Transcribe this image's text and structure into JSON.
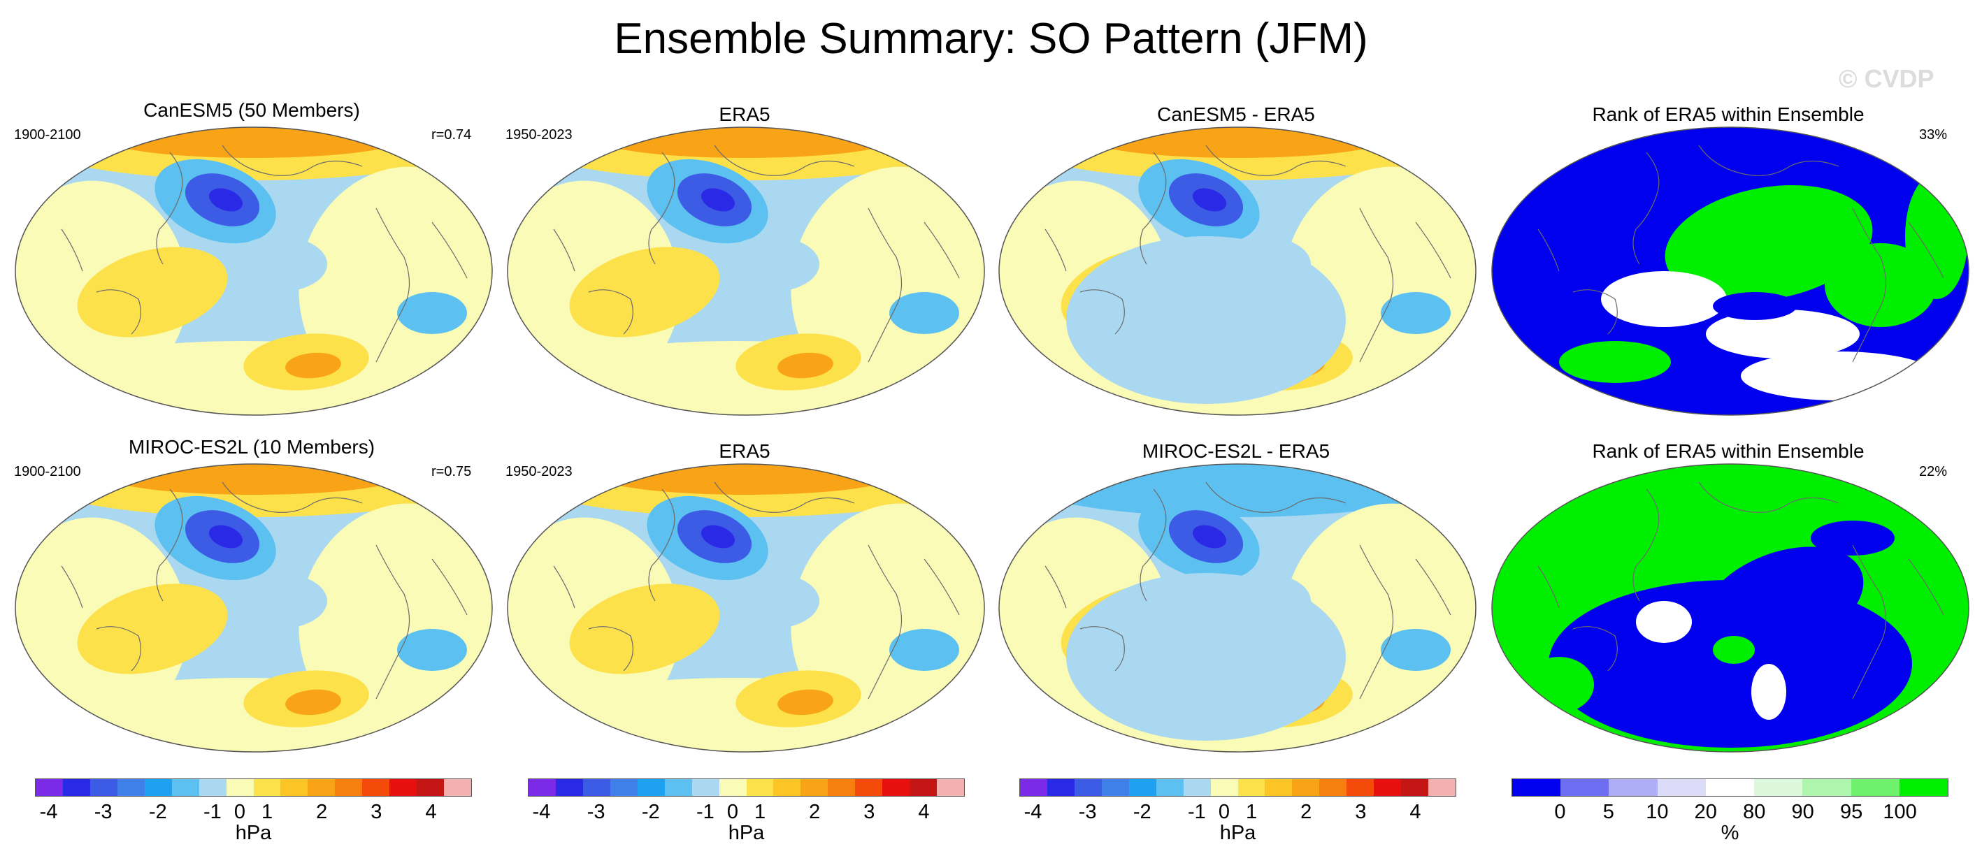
{
  "title": "Ensemble Summary: SO Pattern (JFM)",
  "watermark": "© CVDP",
  "rows": [
    {
      "panels": [
        {
          "title": "CanESM5 (50 Members)",
          "left_label": "1900-2100",
          "right_label": "r=0.74"
        },
        {
          "title": "ERA5",
          "left_label": "1950-2023",
          "right_label": ""
        },
        {
          "title": "CanESM5 - ERA5",
          "left_label": "",
          "right_label": ""
        },
        {
          "title": "Rank of ERA5 within Ensemble",
          "left_label": "",
          "right_label": "33%"
        }
      ]
    },
    {
      "panels": [
        {
          "title": "MIROC-ES2L (10 Members)",
          "left_label": "1900-2100",
          "right_label": "r=0.75"
        },
        {
          "title": "ERA5",
          "left_label": "1950-2023",
          "right_label": ""
        },
        {
          "title": "MIROC-ES2L - ERA5",
          "left_label": "",
          "right_label": ""
        },
        {
          "title": "Rank of ERA5 within Ensemble",
          "left_label": "",
          "right_label": "22%"
        }
      ]
    }
  ],
  "colorbars": [
    {
      "unit": "hPa",
      "ticks": [
        "-4",
        "-3",
        "-2",
        "-1",
        "0",
        "1",
        "2",
        "3",
        "4"
      ],
      "colors": [
        "#7b2be8",
        "#2a2ae6",
        "#3c5ce6",
        "#3f7fea",
        "#1ea1f0",
        "#5cc0f0",
        "#a9d8f0",
        "#fbfbb8",
        "#fde14a",
        "#fbc525",
        "#f8a416",
        "#f67f0d",
        "#f44a0a",
        "#e8100e",
        "#c51616",
        "#f4b0b0"
      ]
    },
    {
      "unit": "hPa",
      "ticks": [
        "-4",
        "-3",
        "-2",
        "-1",
        "0",
        "1",
        "2",
        "3",
        "4"
      ],
      "colors": [
        "#7b2be8",
        "#2a2ae6",
        "#3c5ce6",
        "#3f7fea",
        "#1ea1f0",
        "#5cc0f0",
        "#a9d8f0",
        "#fbfbb8",
        "#fde14a",
        "#fbc525",
        "#f8a416",
        "#f67f0d",
        "#f44a0a",
        "#e8100e",
        "#c51616",
        "#f4b0b0"
      ]
    },
    {
      "unit": "hPa",
      "ticks": [
        "-4",
        "-3",
        "-2",
        "-1",
        "0",
        "1",
        "2",
        "3",
        "4"
      ],
      "colors": [
        "#7b2be8",
        "#2a2ae6",
        "#3c5ce6",
        "#3f7fea",
        "#1ea1f0",
        "#5cc0f0",
        "#a9d8f0",
        "#fbfbb8",
        "#fde14a",
        "#fbc525",
        "#f8a416",
        "#f67f0d",
        "#f44a0a",
        "#e8100e",
        "#c51616",
        "#f4b0b0"
      ]
    },
    {
      "unit": "%",
      "ticks": [
        "0",
        "5",
        "10",
        "20",
        "80",
        "90",
        "95",
        "100"
      ],
      "colors": [
        "#0000ee",
        "#6e6ef2",
        "#aeaef6",
        "#dcdcf8",
        "#ffffff",
        "#dcf8dc",
        "#aef6ae",
        "#6ef26e",
        "#00ee00"
      ]
    }
  ],
  "palette": {
    "neg_strong": "#3c5ce6",
    "neg_med": "#5cc0f0",
    "neg_light": "#a9d8f0",
    "pos_light": "#fbfbb8",
    "pos_med": "#fde14a",
    "pos_strong": "#f8a416",
    "rank_low": "#0000ee",
    "rank_high": "#00ee00",
    "rank_mid": "#ffffff"
  }
}
